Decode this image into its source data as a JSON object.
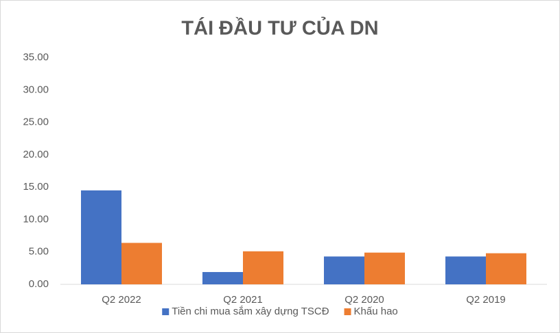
{
  "chart_data": {
    "type": "bar",
    "title": "TÁI ĐẦU TƯ CỦA DN",
    "categories": [
      "Q2 2022",
      "Q2 2021",
      "Q2 2020",
      "Q2 2019"
    ],
    "series": [
      {
        "name": "Tiền chi mua sắm xây dựng TSCĐ",
        "color": "#4472c4",
        "values": [
          14.5,
          1.9,
          4.3,
          4.3
        ]
      },
      {
        "name": "Khấu hao",
        "color": "#ed7d31",
        "values": [
          6.4,
          5.1,
          4.9,
          4.8
        ]
      }
    ],
    "ylim": [
      0,
      35
    ],
    "yticks": [
      {
        "value": 0,
        "label": "0.00"
      },
      {
        "value": 5,
        "label": "5.00"
      },
      {
        "value": 10,
        "label": "10.00"
      },
      {
        "value": 15,
        "label": "15.00"
      },
      {
        "value": 20,
        "label": "20.00"
      },
      {
        "value": 25,
        "label": "25.00"
      },
      {
        "value": 30,
        "label": "30.00"
      },
      {
        "value": 35,
        "label": "35.00"
      }
    ],
    "grid": false,
    "legend": "bottom"
  }
}
